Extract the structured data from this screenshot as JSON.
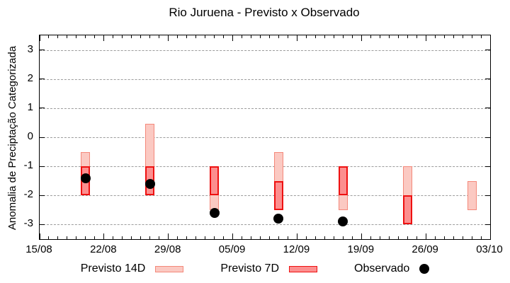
{
  "chart_data": {
    "type": "bar",
    "title": "Rio Juruena - Previsto x Observado",
    "ylabel": "Anomalia de Preciptação Categorizada",
    "xlabel": "",
    "ylim": [
      -3.5,
      3.5
    ],
    "y_ticks": [
      3,
      2,
      1,
      0,
      -1,
      -2,
      -3
    ],
    "grid": "horizontal-dashed",
    "legend_position": "bottom",
    "x_axis": {
      "tick_labels": [
        "15/08",
        "22/08",
        "29/08",
        "05/09",
        "12/09",
        "19/09",
        "26/09",
        "03/10"
      ],
      "major_tick_days": [
        0,
        7,
        14,
        21,
        28,
        35,
        42,
        49
      ],
      "minor_tick_every_days": 1,
      "total_days": 49
    },
    "legend": [
      {
        "label": "Previsto 14D",
        "type": "range-bar",
        "series": "previsto_14d"
      },
      {
        "label": "Previsto 7D",
        "type": "range-bar",
        "series": "previsto_7d"
      },
      {
        "label": "Observado",
        "type": "point",
        "series": "observado"
      }
    ],
    "points": [
      {
        "date": "20/08",
        "day": 5,
        "previsto_14d": [
          -2.0,
          -0.5
        ],
        "previsto_7d": [
          -2.0,
          -1.0
        ],
        "observado": -1.4
      },
      {
        "date": "27/08",
        "day": 12,
        "previsto_14d": [
          -2.0,
          0.45
        ],
        "previsto_7d": [
          -2.0,
          -1.0
        ],
        "observado": -1.6
      },
      {
        "date": "03/09",
        "day": 19,
        "previsto_14d": [
          -2.5,
          -1.0
        ],
        "previsto_7d": [
          -2.0,
          -1.0
        ],
        "observado": -2.6
      },
      {
        "date": "10/09",
        "day": 26,
        "previsto_14d": [
          -2.5,
          -0.5
        ],
        "previsto_7d": [
          -2.5,
          -1.5
        ],
        "observado": -2.8
      },
      {
        "date": "17/09",
        "day": 33,
        "previsto_14d": [
          -2.5,
          -1.0
        ],
        "previsto_7d": [
          -2.0,
          -1.0
        ],
        "observado": -2.9
      },
      {
        "date": "24/09",
        "day": 40,
        "previsto_14d": [
          -3.0,
          -1.0
        ],
        "previsto_7d": [
          -3.0,
          -2.0
        ],
        "observado": null
      },
      {
        "date": "01/10",
        "day": 47,
        "previsto_14d": [
          -2.5,
          -1.5
        ],
        "previsto_7d": null,
        "observado": null
      }
    ],
    "colors": {
      "previsto_14d_fill": "#fbc9c2",
      "previsto_14d_border": "#f4887a",
      "previsto_7d_fill": "#fc8f8f",
      "previsto_7d_border": "#ee1111",
      "observado": "#000000",
      "grid": "#9c9c9c",
      "axis": "#000000",
      "background": "#ffffff"
    }
  }
}
